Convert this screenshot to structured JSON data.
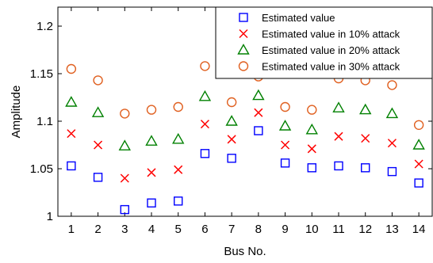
{
  "chart_data": {
    "type": "scatter",
    "xlabel": "Bus No.",
    "ylabel": "Amplitude",
    "xlim": [
      0.5,
      14.5
    ],
    "ylim": [
      1.0,
      1.22
    ],
    "x": [
      1,
      2,
      3,
      4,
      5,
      6,
      7,
      8,
      9,
      10,
      11,
      12,
      13,
      14
    ],
    "x_ticks": [
      "1",
      "2",
      "3",
      "4",
      "5",
      "6",
      "7",
      "8",
      "9",
      "10",
      "11",
      "12",
      "13",
      "14"
    ],
    "y_ticks": [
      1.0,
      1.05,
      1.1,
      1.15,
      1.2
    ],
    "y_tick_labels": [
      "1",
      "1.05",
      "1.1",
      "1.15",
      "1.2"
    ],
    "grid": false,
    "legend_position": "top-right",
    "series": [
      {
        "name": "Estimated value",
        "marker": "square",
        "color": "#0000ff",
        "values": [
          1.053,
          1.041,
          1.007,
          1.014,
          1.016,
          1.066,
          1.061,
          1.09,
          1.056,
          1.051,
          1.053,
          1.051,
          1.047,
          1.035
        ]
      },
      {
        "name": "Estimated value in 10% attack",
        "marker": "x",
        "color": "#ff0000",
        "values": [
          1.087,
          1.075,
          1.04,
          1.046,
          1.049,
          1.097,
          1.081,
          1.109,
          1.075,
          1.071,
          1.084,
          1.082,
          1.077,
          1.055
        ]
      },
      {
        "name": "Estimated value in 20% attack",
        "marker": "triangle",
        "color": "#008000",
        "values": [
          1.12,
          1.109,
          1.074,
          1.079,
          1.081,
          1.126,
          1.1,
          1.127,
          1.095,
          1.091,
          1.114,
          1.112,
          1.108,
          1.075
        ]
      },
      {
        "name": "Estimated value in 30% attack",
        "marker": "circle",
        "color": "#e06020",
        "values": [
          1.155,
          1.143,
          1.108,
          1.112,
          1.115,
          1.158,
          1.12,
          1.147,
          1.115,
          1.112,
          1.145,
          1.143,
          1.138,
          1.096
        ]
      }
    ]
  }
}
